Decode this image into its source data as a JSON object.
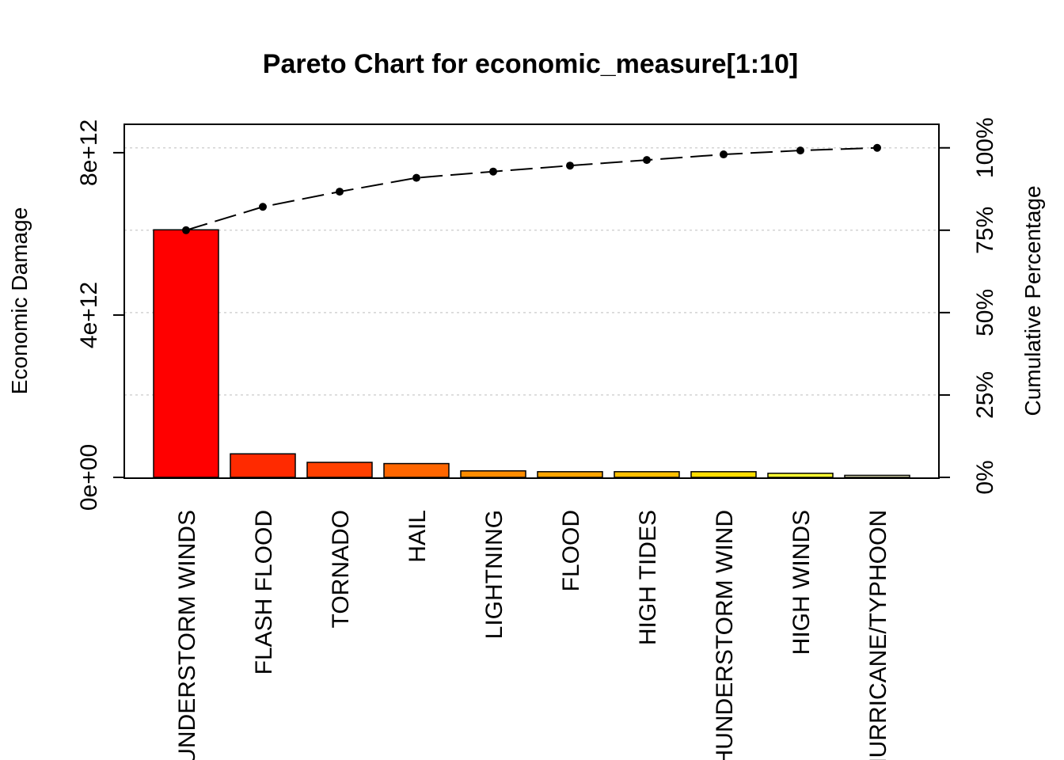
{
  "chart_data": {
    "type": "bar",
    "title": "Pareto Chart for economic_measure[1:10]",
    "ylabel": "Economic Damage",
    "y2label": "Cumulative Percentage",
    "ylim": [
      0,
      8700000000000.0
    ],
    "grid": "dotted horizontal at cumulative 25% steps",
    "y_ticks": [
      {
        "value": 0,
        "label": "0e+00"
      },
      {
        "value": 4000000000000.0,
        "label": "4e+12"
      },
      {
        "value": 8000000000000.0,
        "label": "8e+12"
      }
    ],
    "y2_ticks": [
      {
        "value": 0,
        "label": "0%"
      },
      {
        "value": 25,
        "label": "25%"
      },
      {
        "value": 50,
        "label": "50%"
      },
      {
        "value": 75,
        "label": "75%"
      },
      {
        "value": 100,
        "label": "100%"
      }
    ],
    "categories": [
      "THUNDERSTORM WINDS",
      "FLASH FLOOD",
      "TORNADO",
      "HAIL",
      "LIGHTNING",
      "FLOOD",
      "HIGH TIDES",
      "THUNDERSTORM WIND",
      "HIGH WINDS",
      "HURRICANE/TYPHOON"
    ],
    "values": [
      6100000000000.0,
      580000000000.0,
      370000000000.0,
      340000000000.0,
      160000000000.0,
      140000000000.0,
      140000000000.0,
      140000000000.0,
      100000000000.0,
      50000000000.0
    ],
    "cumulative_percent": [
      75.0,
      82.1,
      86.7,
      90.9,
      92.8,
      94.6,
      96.3,
      98.0,
      99.2,
      100.0
    ],
    "colors": [
      "#ff0000",
      "#ff2a00",
      "#ff4000",
      "#ff6600",
      "#ff8c00",
      "#ffa500",
      "#ffbf00",
      "#ffdd00",
      "#ffff33",
      "#ffffcc"
    ]
  }
}
